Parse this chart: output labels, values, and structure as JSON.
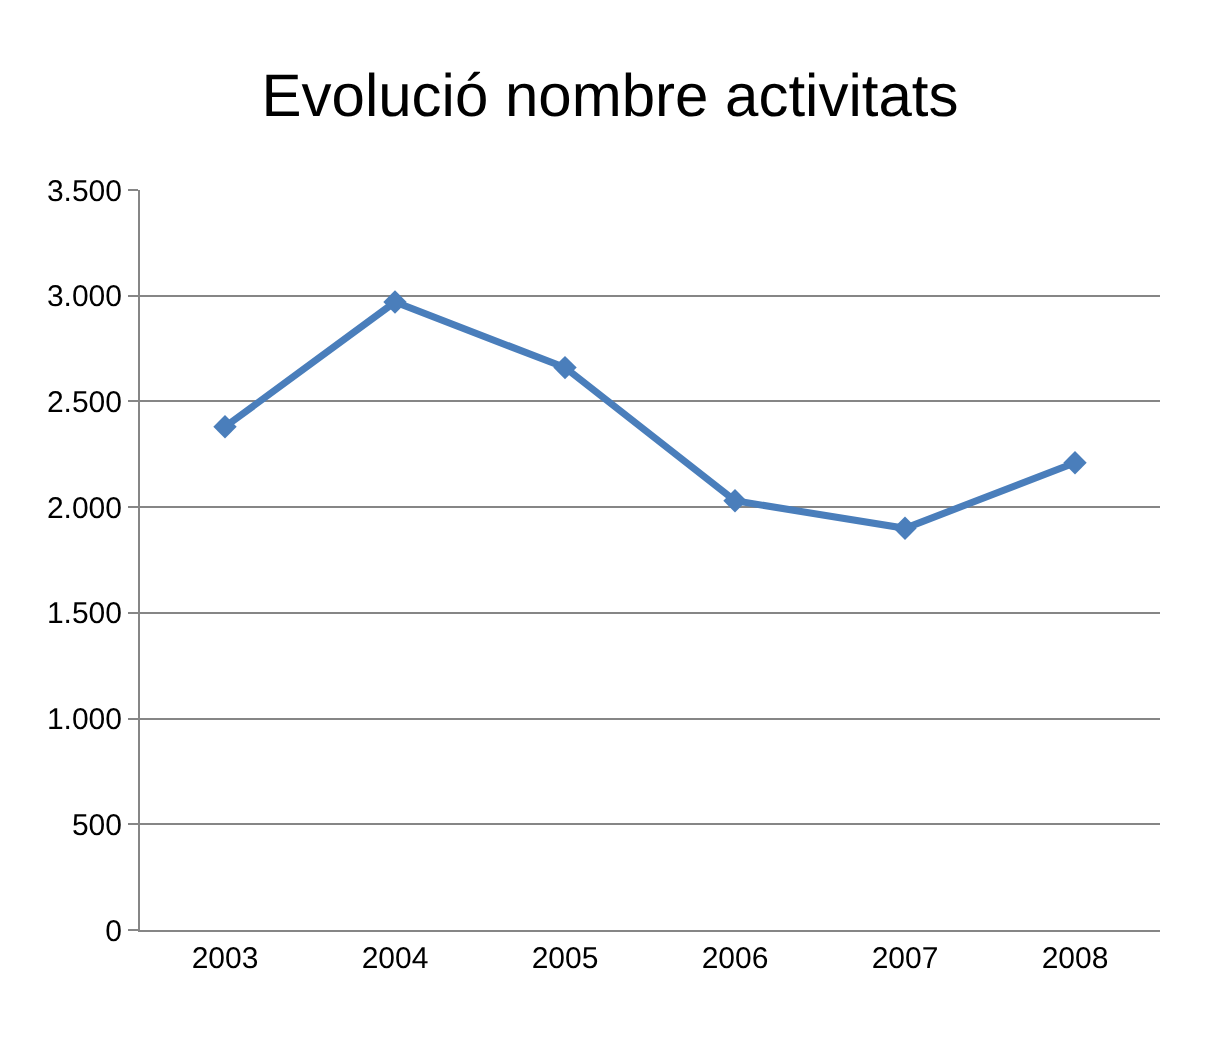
{
  "chart_data": {
    "type": "line",
    "title": "Evolució nombre activitats",
    "categories": [
      "2003",
      "2004",
      "2005",
      "2006",
      "2007",
      "2008"
    ],
    "series": [
      {
        "color": "#4a7ebb",
        "values": [
          2380,
          2970,
          2660,
          2030,
          1900,
          2210
        ]
      }
    ],
    "ylim": [
      0,
      3500
    ],
    "yticks": [
      0,
      {
        "value": 500,
        "label": "500"
      },
      {
        "value": 1000,
        "label": "1.000"
      },
      {
        "value": 1500,
        "label": "1.500"
      },
      {
        "value": 2000,
        "label": "2.000"
      },
      {
        "value": 2500,
        "label": "2.500"
      },
      {
        "value": 3000,
        "label": "3.000"
      },
      {
        "value": 3500,
        "label": "3.500"
      }
    ],
    "grid": "y",
    "legend": false,
    "marker": "diamond",
    "line_style": "solid"
  }
}
